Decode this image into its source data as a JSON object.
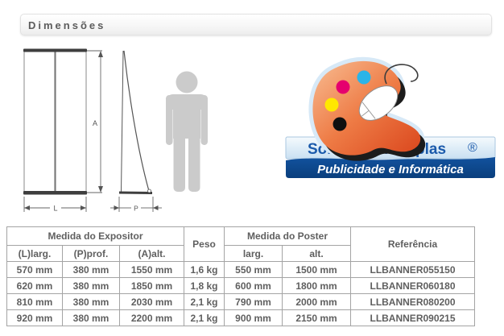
{
  "page": {
    "title": "Dimensões"
  },
  "diagram": {
    "labels": {
      "height": "A",
      "width": "L",
      "depth": "P"
    }
  },
  "logo": {
    "brand": "Soluções Multiplas",
    "registered": "®",
    "tagline": "Publicidade e Informática",
    "colors": {
      "brand_blue": "#1b5aab",
      "band_dark": "#0d4a90",
      "band_light": "#d9ebf8",
      "palette_orange": "#e05325",
      "dot_cyan": "#2ab4e8",
      "dot_magenta": "#e5006e",
      "dot_yellow": "#ffe800",
      "dot_black": "#101010"
    }
  },
  "table": {
    "group_headers": {
      "expositor": "Medida do Expositor",
      "peso": "Peso",
      "poster": "Medida do Poster",
      "referencia": "Referência"
    },
    "sub_headers": {
      "larg_l": "(L)larg.",
      "prof_p": "(P)prof.",
      "alt_a": "(A)alt.",
      "larg": "larg.",
      "alt": "alt."
    },
    "rows": [
      [
        "570 mm",
        "380 mm",
        "1550 mm",
        "1,6 kg",
        "550 mm",
        "1500 mm",
        "LLBANNER055150"
      ],
      [
        "620 mm",
        "380 mm",
        "1850 mm",
        "1,8 kg",
        "600 mm",
        "1800 mm",
        "LLBANNER060180"
      ],
      [
        "810 mm",
        "380 mm",
        "2030 mm",
        "2,1 kg",
        "790 mm",
        "2000 mm",
        "LLBANNER080200"
      ],
      [
        "920 mm",
        "380 mm",
        "2200 mm",
        "2,1 kg",
        "900 mm",
        "2150 mm",
        "LLBANNER090215"
      ]
    ]
  }
}
